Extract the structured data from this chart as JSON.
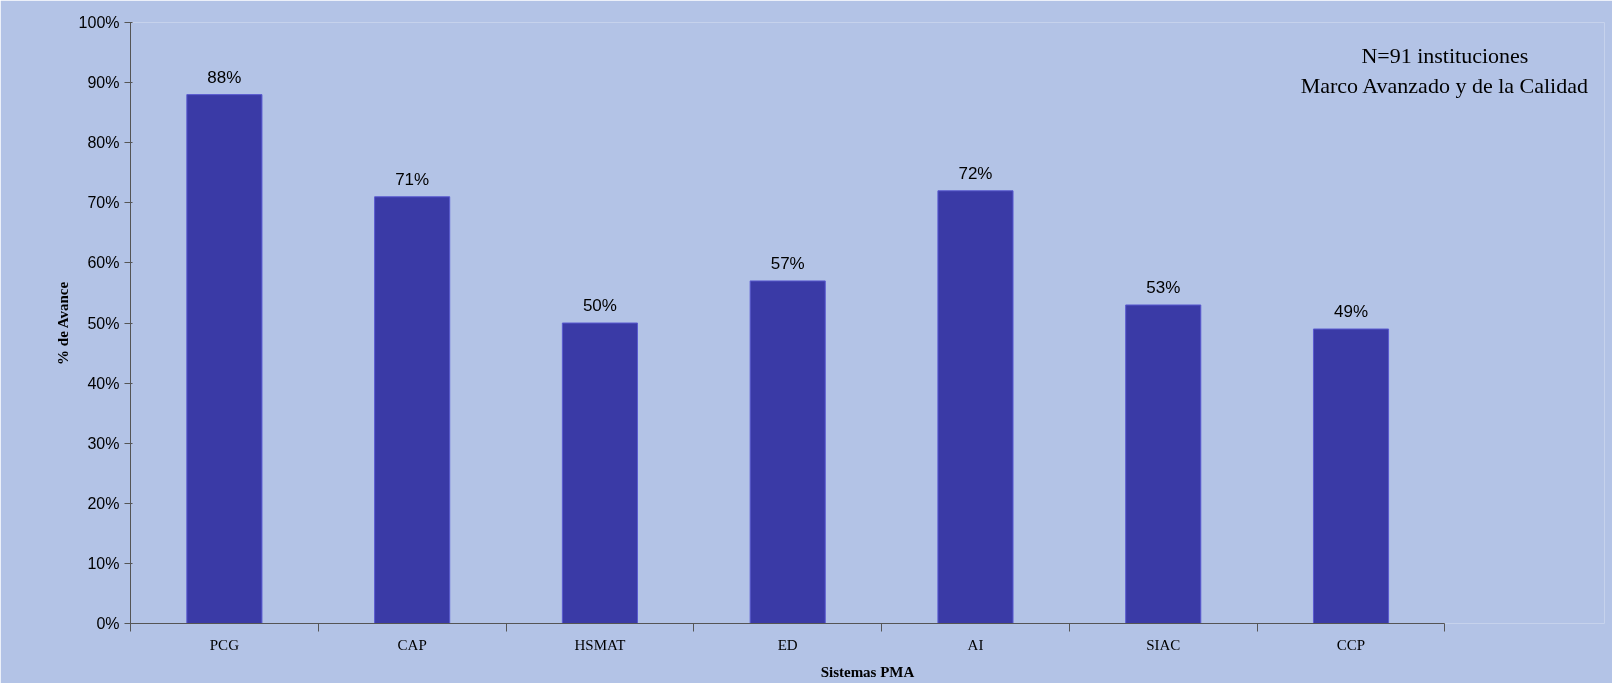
{
  "chart_data": {
    "type": "bar",
    "categories": [
      "PCG",
      "CAP",
      "HSMAT",
      "ED",
      "AI",
      "SIAC",
      "CCP"
    ],
    "values": [
      88,
      71,
      50,
      57,
      72,
      53,
      49
    ],
    "value_labels": [
      "88%",
      "71%",
      "50%",
      "57%",
      "72%",
      "53%",
      "49%"
    ],
    "color": "#3a3aa6",
    "xlabel": "Sistemas PMA",
    "ylabel": "% de Avance",
    "ylim": [
      0,
      100
    ],
    "yticks": [
      {
        "value": 0,
        "label": "0%"
      },
      {
        "value": 10,
        "label": "10%"
      },
      {
        "value": 20,
        "label": "20%"
      },
      {
        "value": 30,
        "label": "30%"
      },
      {
        "value": 40,
        "label": "40%"
      },
      {
        "value": 50,
        "label": "50%"
      },
      {
        "value": 60,
        "label": "60%"
      },
      {
        "value": 70,
        "label": "70%"
      },
      {
        "value": 80,
        "label": "80%"
      },
      {
        "value": 90,
        "label": "90%"
      },
      {
        "value": 100,
        "label": "100%"
      }
    ],
    "annotations": [
      "N=91 instituciones",
      "Marco Avanzado y de la Calidad"
    ],
    "grid": false
  }
}
